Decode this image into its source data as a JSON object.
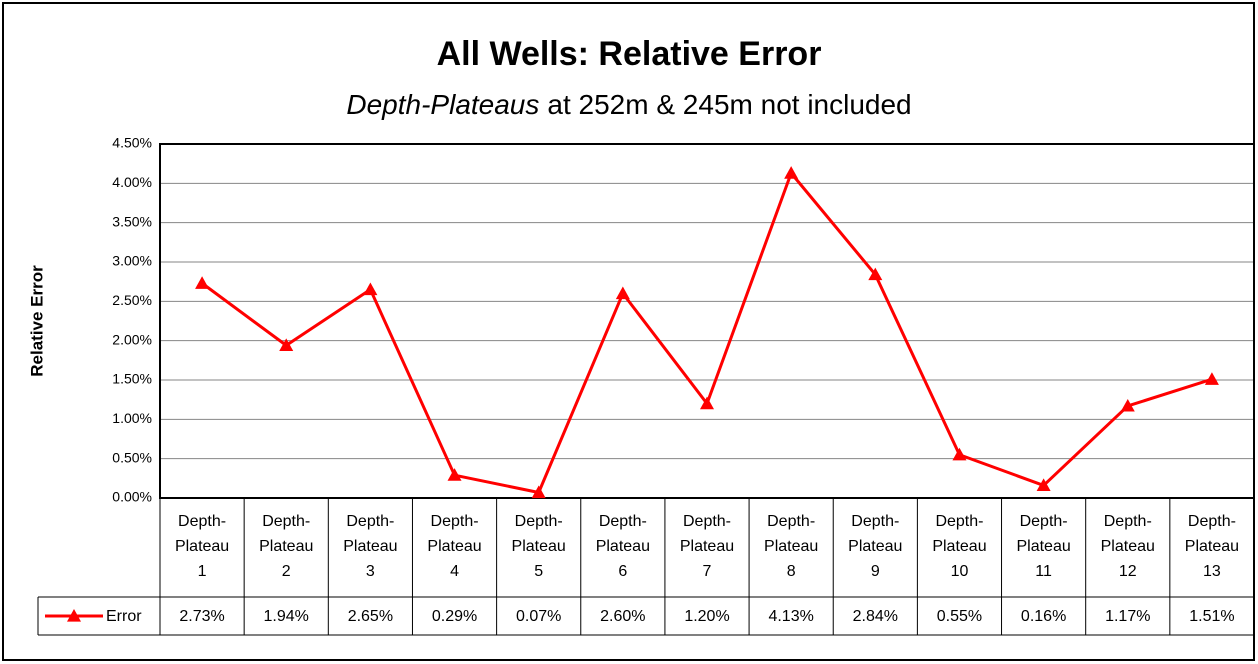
{
  "chart_data": {
    "type": "line",
    "title": "All Wells: Relative Error",
    "subtitle": {
      "emphasis": "Depth-Plateaus",
      "rest": "at 252m & 245m not included"
    },
    "y_label": "Relative Error",
    "categories": [
      "Depth-Plateau 1",
      "Depth-Plateau 2",
      "Depth-Plateau 3",
      "Depth-Plateau 4",
      "Depth-Plateau 5",
      "Depth-Plateau 6",
      "Depth-Plateau 7",
      "Depth-Plateau 8",
      "Depth-Plateau 9",
      "Depth-Plateau 10",
      "Depth-Plateau 11",
      "Depth-Plateau 12",
      "Depth-Plateau 13"
    ],
    "series": [
      {
        "name": "Error",
        "color": "#ff0000",
        "values": [
          2.73,
          1.94,
          2.65,
          0.29,
          0.07,
          2.6,
          1.2,
          4.13,
          2.84,
          0.55,
          0.16,
          1.17,
          1.51
        ],
        "value_labels": [
          "2.73%",
          "1.94%",
          "2.65%",
          "0.29%",
          "0.07%",
          "2.60%",
          "1.20%",
          "4.13%",
          "2.84%",
          "0.55%",
          "0.16%",
          "1.17%",
          "1.51%"
        ]
      }
    ],
    "ylim": [
      0,
      4.5
    ],
    "yticks": [
      {
        "value": 0,
        "label": "0.00%"
      },
      {
        "value": 0.5,
        "label": "0.50%"
      },
      {
        "value": 1,
        "label": "1.00%"
      },
      {
        "value": 1.5,
        "label": "1.50%"
      },
      {
        "value": 2,
        "label": "2.00%"
      },
      {
        "value": 2.5,
        "label": "2.50%"
      },
      {
        "value": 3,
        "label": "3.00%"
      },
      {
        "value": 3.5,
        "label": "3.50%"
      },
      {
        "value": 4,
        "label": "4.00%"
      },
      {
        "value": 4.5,
        "label": "4.50%"
      }
    ],
    "grid": true,
    "data_table": true
  }
}
